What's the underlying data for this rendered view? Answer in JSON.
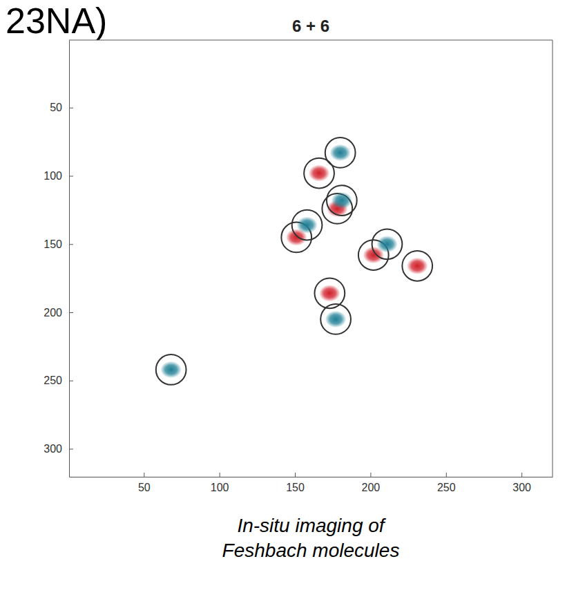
{
  "chart_data": {
    "type": "scatter",
    "header": "23NA)",
    "title": "6 + 6",
    "caption": [
      "In-situ imaging of",
      "Feshbach molecules"
    ],
    "xlim": [
      0.5,
      320.5
    ],
    "ylim": [
      0.5,
      320.5
    ],
    "xticks": [
      50,
      100,
      150,
      200,
      250,
      300
    ],
    "yticks": [
      50,
      100,
      150,
      200,
      250,
      300
    ],
    "grid": false,
    "series": [
      {
        "color": "#d0202a",
        "marker": "circled",
        "x": [
          166,
          178,
          151,
          202,
          231,
          173
        ],
        "values": [
          98,
          124,
          145,
          158,
          166,
          186
        ]
      },
      {
        "color": "#1f7f95",
        "marker": "circled",
        "x": [
          180,
          181,
          158,
          211,
          177,
          68
        ],
        "values": [
          83,
          118,
          136,
          150,
          205,
          242
        ]
      }
    ]
  }
}
